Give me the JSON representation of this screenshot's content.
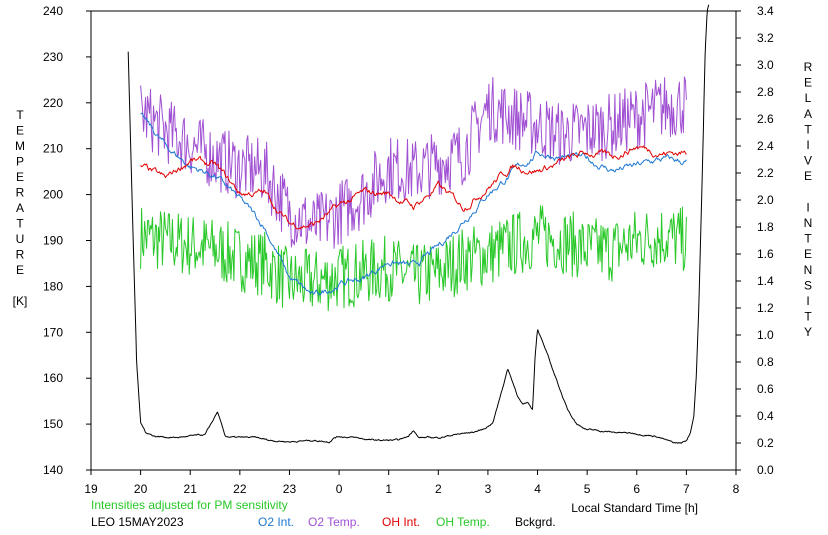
{
  "chart_data": {
    "type": "line",
    "title": "",
    "xlabel": "Local Standard Time [h]",
    "ylabel_left": [
      "T",
      "E",
      "M",
      "P",
      "E",
      "R",
      "A",
      "T",
      "U",
      "R",
      "E",
      "",
      "[K]"
    ],
    "ylabel_right": [
      "R",
      "E",
      "L",
      "A",
      "T",
      "I",
      "V",
      "E",
      "",
      "I",
      "N",
      "T",
      "E",
      "N",
      "S",
      "I",
      "T",
      "Y"
    ],
    "xlim": [
      19,
      32
    ],
    "xtick_labels": [
      "19",
      "20",
      "21",
      "22",
      "23",
      "0",
      "1",
      "2",
      "3",
      "4",
      "5",
      "6",
      "7",
      "8"
    ],
    "ylim_left": [
      140,
      240
    ],
    "yticks_left": [
      "140",
      "150",
      "160",
      "170",
      "180",
      "190",
      "200",
      "210",
      "220",
      "230",
      "240"
    ],
    "ylim_right": [
      0.0,
      3.4
    ],
    "yticks_right": [
      "0.0",
      "0.2",
      "0.4",
      "0.6",
      "0.8",
      "1.0",
      "1.2",
      "1.4",
      "1.6",
      "1.8",
      "2.0",
      "2.2",
      "2.4",
      "2.6",
      "2.8",
      "3.0",
      "3.2",
      "3.4"
    ],
    "note": "Intensities adjusted for PM sensitivity",
    "station": "LEO 15MAY2023",
    "colors": {
      "O2 Int.": "#1e78d2",
      "O2 Temp.": "#a050d2",
      "OH Int.": "#e00000",
      "OH Temp.": "#28c828",
      "Bckgrd.": "#000000",
      "note": "#28c828"
    },
    "series": [
      {
        "name": "O2 Int.",
        "axis": "right",
        "noise": 0.03,
        "x": [
          20.0,
          20.5,
          21.0,
          21.5,
          22.0,
          22.5,
          23.0,
          23.5,
          24.0,
          24.5,
          25.0,
          25.5,
          26.0,
          26.5,
          27.0,
          27.5,
          28.0,
          28.5,
          29.0,
          29.5,
          30.0,
          30.5,
          31.0
        ],
        "values": [
          2.62,
          2.4,
          2.25,
          2.18,
          2.0,
          1.8,
          1.42,
          1.28,
          1.38,
          1.42,
          1.55,
          1.5,
          1.65,
          1.85,
          2.05,
          2.2,
          2.35,
          2.32,
          2.3,
          2.22,
          2.25,
          2.3,
          2.28
        ]
      },
      {
        "name": "O2 Temp.",
        "axis": "left",
        "noise": 4,
        "x": [
          20.0,
          20.5,
          21.0,
          21.5,
          22.0,
          22.5,
          23.0,
          23.5,
          24.0,
          24.5,
          25.0,
          25.5,
          26.0,
          26.5,
          27.0,
          27.5,
          28.0,
          28.5,
          29.0,
          29.5,
          30.0,
          30.5,
          31.0
        ],
        "values": [
          218,
          214,
          211,
          208,
          206,
          205,
          196,
          193,
          196,
          200,
          206,
          205,
          207,
          209,
          219,
          217,
          215,
          213,
          214,
          215,
          217,
          219,
          220
        ]
      },
      {
        "name": "OH Int.",
        "axis": "right",
        "noise": 0.03,
        "x": [
          20.0,
          20.5,
          21.0,
          21.5,
          22.0,
          22.5,
          23.0,
          23.5,
          24.0,
          24.5,
          25.0,
          25.5,
          26.0,
          26.5,
          27.0,
          27.5,
          28.0,
          28.5,
          29.0,
          29.5,
          30.0,
          30.5,
          31.0
        ],
        "values": [
          2.25,
          2.15,
          2.3,
          2.25,
          2.05,
          2.05,
          1.82,
          1.82,
          1.95,
          2.05,
          2.05,
          1.95,
          2.1,
          1.95,
          2.1,
          2.25,
          2.22,
          2.28,
          2.35,
          2.32,
          2.4,
          2.35,
          2.35
        ]
      },
      {
        "name": "OH Temp.",
        "axis": "left",
        "noise": 4,
        "x": [
          20.0,
          20.5,
          21.0,
          21.5,
          22.0,
          22.5,
          23.0,
          23.5,
          24.0,
          24.5,
          25.0,
          25.5,
          26.0,
          26.5,
          27.0,
          27.5,
          28.0,
          28.5,
          29.0,
          29.5,
          30.0,
          30.5,
          31.0
        ],
        "values": [
          191,
          190,
          189,
          188,
          186,
          185,
          181,
          181,
          182,
          183,
          184,
          182,
          183,
          186,
          187,
          189,
          191,
          190,
          188,
          188,
          190,
          191,
          190
        ]
      },
      {
        "name": "Bckgrd.",
        "axis": "right",
        "noise": 0.006,
        "x": [
          19.75,
          19.85,
          19.92,
          20.0,
          20.1,
          20.3,
          20.7,
          21.0,
          21.3,
          21.55,
          21.7,
          21.9,
          22.3,
          22.6,
          23.0,
          23.5,
          23.8,
          23.9,
          24.0,
          24.3,
          24.7,
          25.2,
          25.4,
          25.5,
          25.6,
          26.0,
          26.3,
          26.7,
          26.9,
          27.1,
          27.25,
          27.4,
          27.6,
          27.7,
          27.8,
          27.9,
          27.95,
          28.0,
          28.1,
          28.3,
          28.6,
          28.8,
          29.0,
          29.5,
          30.0,
          30.2,
          30.4,
          30.6,
          30.75,
          30.9,
          31.0,
          31.08,
          31.15,
          31.2,
          31.25,
          31.32,
          31.38,
          31.42,
          31.45
        ],
        "values": [
          3.1,
          1.7,
          0.8,
          0.35,
          0.28,
          0.25,
          0.24,
          0.25,
          0.26,
          0.43,
          0.25,
          0.24,
          0.24,
          0.22,
          0.21,
          0.22,
          0.21,
          0.24,
          0.25,
          0.24,
          0.22,
          0.22,
          0.25,
          0.3,
          0.24,
          0.24,
          0.26,
          0.28,
          0.3,
          0.35,
          0.55,
          0.75,
          0.55,
          0.48,
          0.5,
          0.45,
          0.85,
          1.05,
          0.95,
          0.75,
          0.45,
          0.34,
          0.3,
          0.28,
          0.27,
          0.26,
          0.25,
          0.22,
          0.2,
          0.2,
          0.22,
          0.28,
          0.4,
          0.7,
          1.2,
          2.2,
          3.1,
          3.4,
          3.45
        ]
      }
    ],
    "legend": {
      "placement": "bottom",
      "entries": [
        "O2 Int.",
        "O2 Temp.",
        "OH Int.",
        "OH Temp.",
        "Bckgrd."
      ]
    },
    "grid": false
  }
}
